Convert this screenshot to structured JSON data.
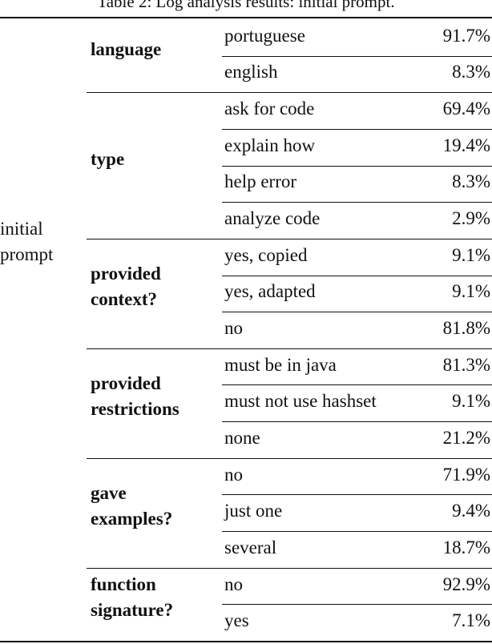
{
  "caption": "Table 2: Log analysis results: initial prompt.",
  "row_label": [
    "initial",
    "prompt"
  ],
  "groups": [
    {
      "label": [
        "language"
      ],
      "rows": [
        [
          "portuguese",
          "91.7%"
        ],
        [
          "english",
          "8.3%"
        ]
      ]
    },
    {
      "label": [
        "type"
      ],
      "rows": [
        [
          "ask for code",
          "69.4%"
        ],
        [
          "explain how",
          "19.4%"
        ],
        [
          "help error",
          "8.3%"
        ],
        [
          "analyze code",
          "2.9%"
        ]
      ]
    },
    {
      "label": [
        "provided",
        "context?"
      ],
      "rows": [
        [
          "yes, copied",
          "9.1%"
        ],
        [
          "yes, adapted",
          "9.1%"
        ],
        [
          "no",
          "81.8%"
        ]
      ]
    },
    {
      "label": [
        "provided",
        "restrictions"
      ],
      "rows": [
        [
          "must be in java",
          "81.3%"
        ],
        [
          "must not use hashset",
          "9.1%"
        ],
        [
          "none",
          "21.2%"
        ]
      ]
    },
    {
      "label": [
        "gave",
        "examples?"
      ],
      "rows": [
        [
          "no",
          "71.9%"
        ],
        [
          "just one",
          "9.4%"
        ],
        [
          "several",
          "18.7%"
        ]
      ]
    },
    {
      "label": [
        "function",
        "signature?"
      ],
      "rows": [
        [
          "no",
          "92.9%"
        ],
        [
          "yes",
          "7.1%"
        ]
      ]
    }
  ]
}
